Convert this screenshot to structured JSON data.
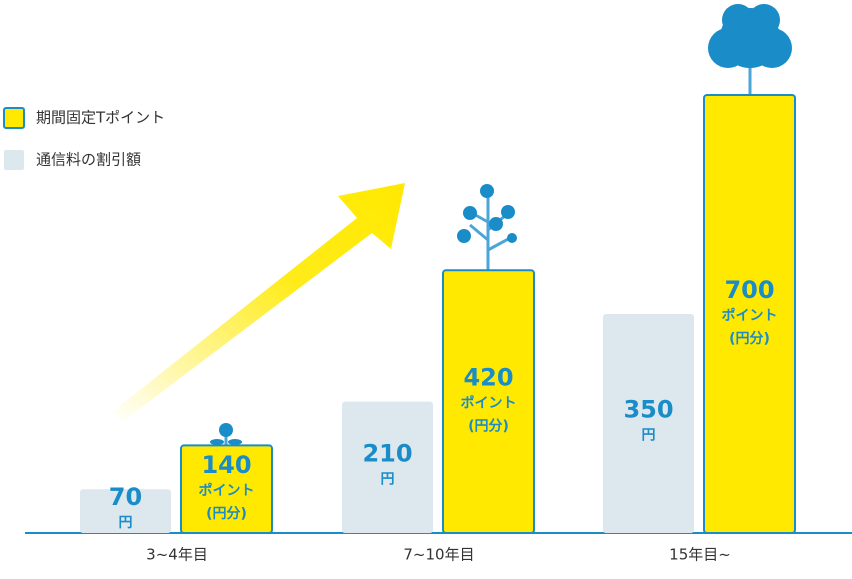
{
  "chart_data": {
    "type": "bar",
    "categories": [
      "3~4年目",
      "7~10年目",
      "15年目~"
    ],
    "series": [
      {
        "name": "通信料の割引額",
        "color": "#dce8ee",
        "values": [
          70,
          210,
          350
        ],
        "unit": [
          "円"
        ]
      },
      {
        "name": "期間固定Tポイント",
        "color": "#ffe900",
        "border": "#1a8cc8",
        "values": [
          140,
          420,
          700
        ],
        "unit": [
          "ポイント",
          "(円分)"
        ]
      }
    ],
    "legend": "top-left"
  }
}
